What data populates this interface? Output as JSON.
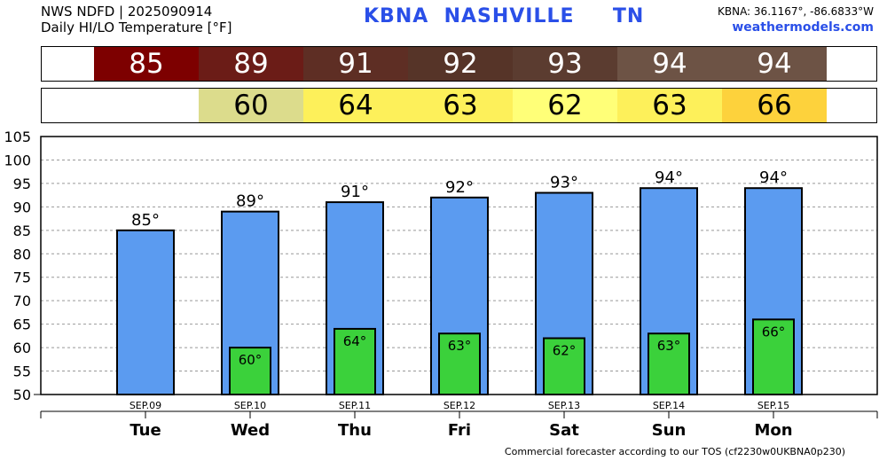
{
  "header": {
    "source": "NWS NDFD | 2025090914",
    "title": "Daily HI/LO Temperature [°F]",
    "station": "KBNA  NASHVILLE     TN",
    "coords": "KBNA: 36.1167°, -86.6833°W",
    "site": "weathermodels.com"
  },
  "strips": {
    "hi": [
      {
        "text": "85",
        "color": "#7d0000"
      },
      {
        "text": "89",
        "color": "#6b1c17"
      },
      {
        "text": "91",
        "color": "#5e2e24"
      },
      {
        "text": "92",
        "color": "#563428"
      },
      {
        "text": "93",
        "color": "#5b3c30"
      },
      {
        "text": "94",
        "color": "#6d5345"
      },
      {
        "text": "94",
        "color": "#6d5345"
      }
    ],
    "lo": [
      {
        "text": "",
        "color": "#ffffff"
      },
      {
        "text": "60",
        "color": "#dcdc8c"
      },
      {
        "text": "64",
        "color": "#fdf05a"
      },
      {
        "text": "63",
        "color": "#fdf05a"
      },
      {
        "text": "62",
        "color": "#ffff78"
      },
      {
        "text": "63",
        "color": "#fdf05a"
      },
      {
        "text": "66",
        "color": "#fdd23c"
      }
    ]
  },
  "chart_data": {
    "type": "bar",
    "categories": [
      "SEP.09",
      "SEP.10",
      "SEP.11",
      "SEP.12",
      "SEP.13",
      "SEP.14",
      "SEP.15"
    ],
    "days": [
      "Tue",
      "Wed",
      "Thu",
      "Fri",
      "Sat",
      "Sun",
      "Mon"
    ],
    "series": [
      {
        "values": [
          85,
          89,
          91,
          92,
          93,
          94,
          94
        ],
        "labels": [
          "85°",
          "89°",
          "91°",
          "92°",
          "93°",
          "94°",
          "94°"
        ],
        "color": "#5b9bf0"
      },
      {
        "values": [
          null,
          60,
          64,
          63,
          62,
          63,
          66
        ],
        "labels": [
          "",
          "60°",
          "64°",
          "63°",
          "62°",
          "63°",
          "66°"
        ],
        "color": "#3bd13b"
      }
    ],
    "ylim": [
      50,
      105
    ],
    "yticks": [
      "105",
      "100",
      "95",
      "90",
      "85",
      "80",
      "75",
      "70",
      "65",
      "60",
      "55",
      "50"
    ],
    "grid": true
  },
  "footer": "Commercial forecaster according to our TOS (cf2230w0UKBNA0p230)"
}
